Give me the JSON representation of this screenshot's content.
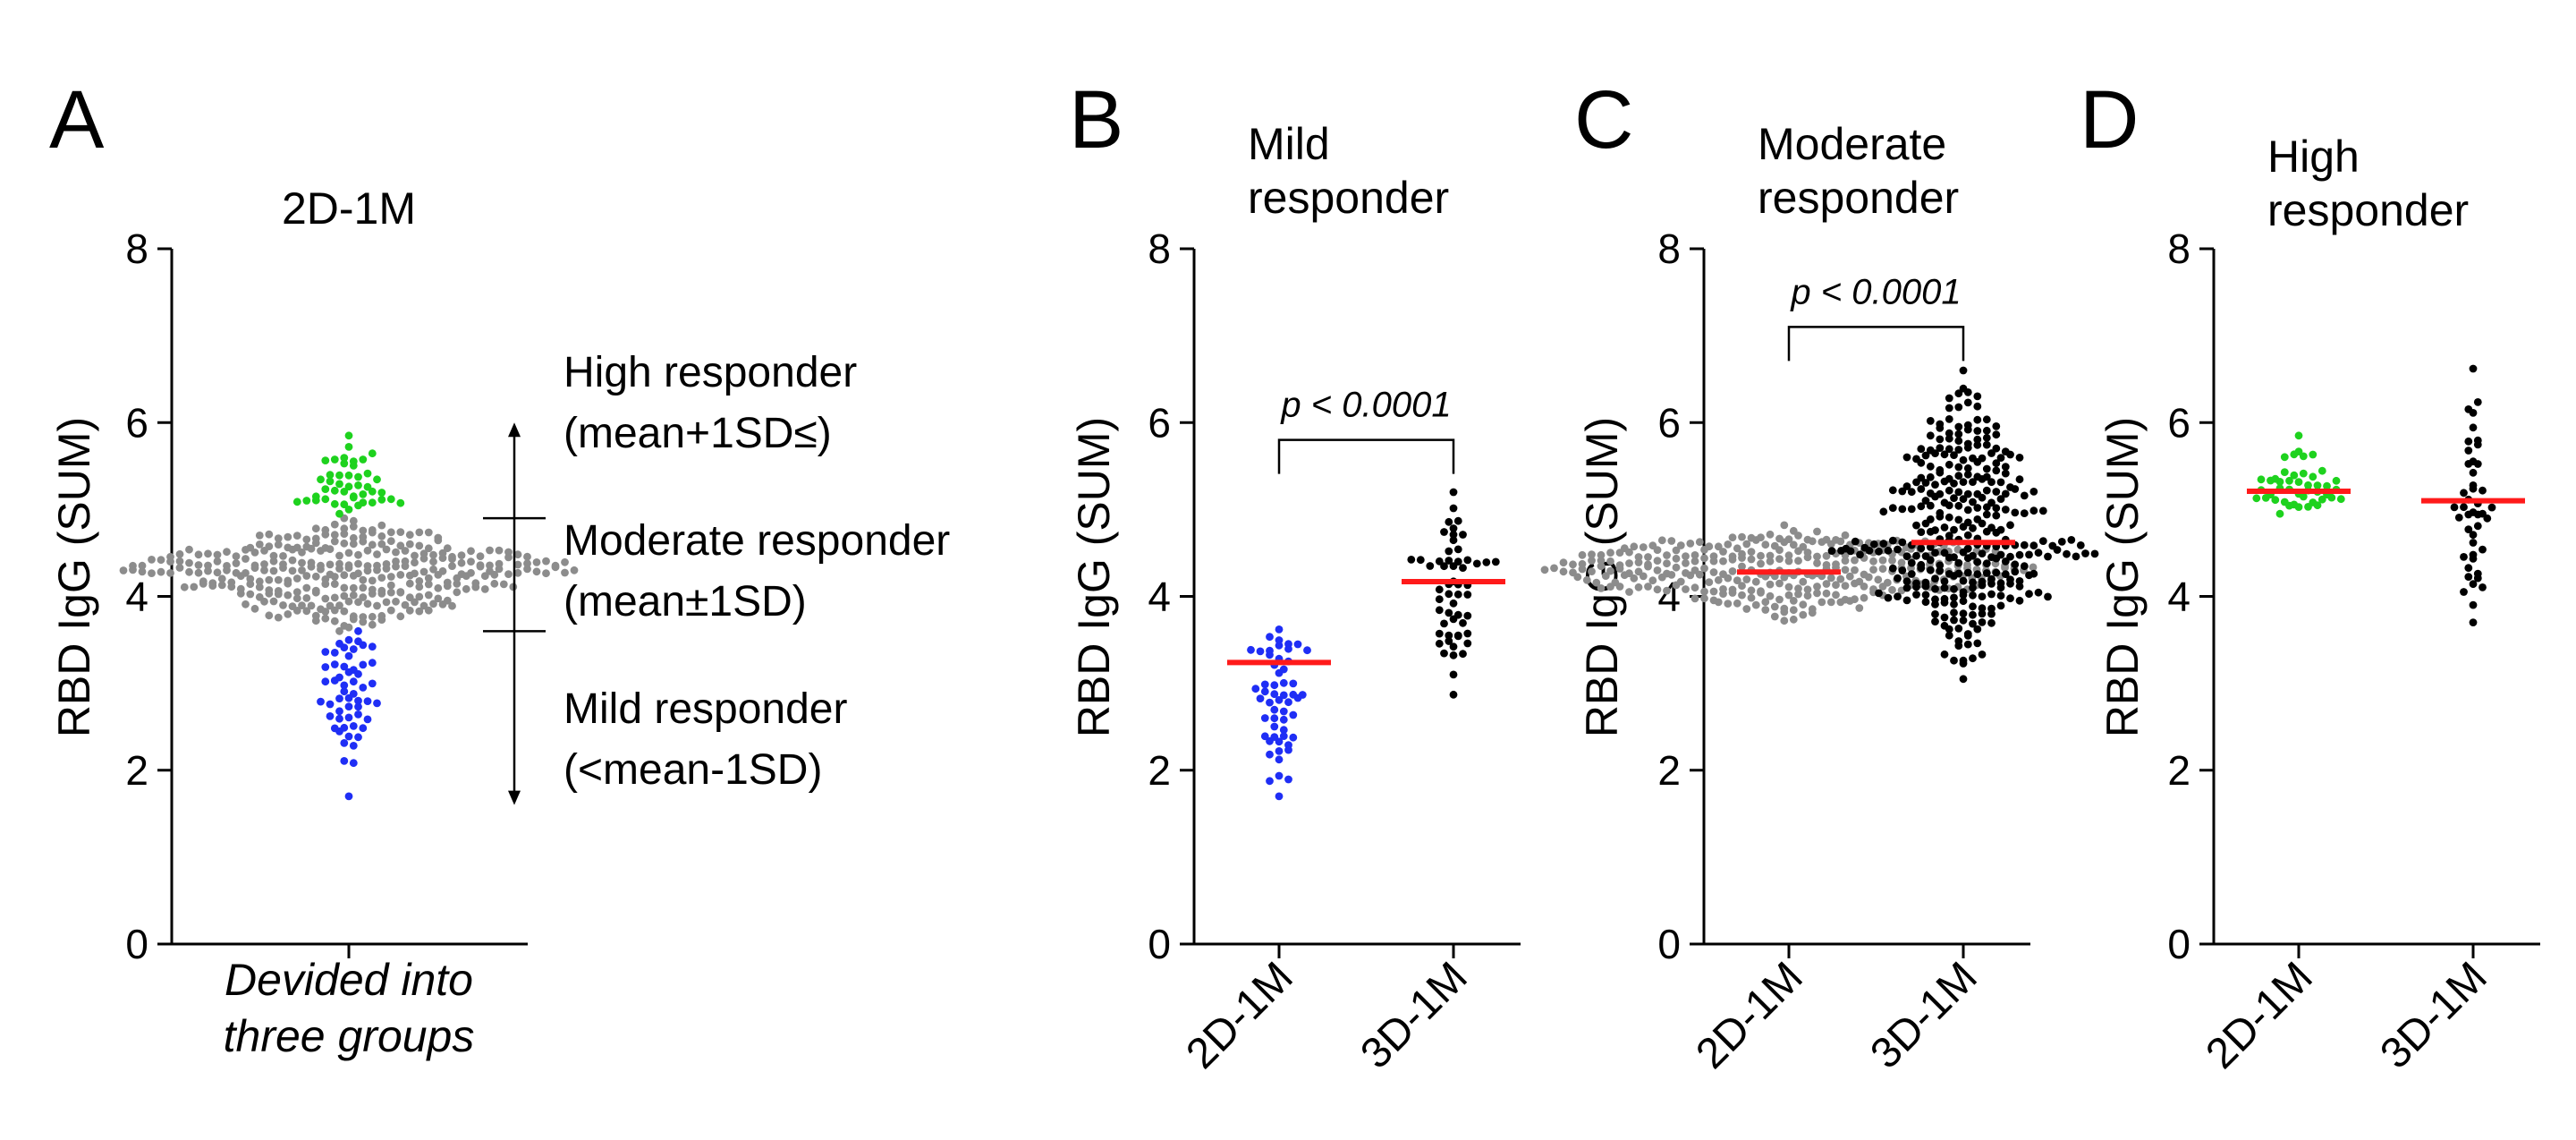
{
  "figure": {
    "background": "#ffffff",
    "colors": {
      "mild": "#1f2ef5",
      "moderate": "#8c8c8c",
      "high": "#1ed21e",
      "third_dose": "#000000",
      "mean_line": "#ff1a1a"
    }
  },
  "chart_data": [
    {
      "panel": "A",
      "type": "scatter",
      "title": "2D-1M",
      "ylabel": "RBD IgG (SUM)",
      "ylim": [
        0,
        8
      ],
      "yticks": [
        0,
        2,
        4,
        6,
        8
      ],
      "xlabel_lines": [
        "Devided into",
        "three groups"
      ],
      "thresholds": {
        "lower": 3.6,
        "upper": 4.9
      },
      "groups": [
        {
          "name": "High responder",
          "color_key": "high",
          "count": 45,
          "min": 4.95,
          "max": 5.85,
          "center": 5.1
        },
        {
          "name": "Moderate responder",
          "color_key": "moderate",
          "count": 330,
          "min": 3.6,
          "max": 4.9,
          "center": 4.3
        },
        {
          "name": "Mild responder",
          "color_key": "mild",
          "count": 55,
          "min": 1.7,
          "max": 3.6,
          "center": 3.45
        }
      ],
      "annotations": [
        {
          "line1": "High responder",
          "line2": "(mean+1SD≤)"
        },
        {
          "line1": "Moderate responder",
          "line2": "(mean±1SD)"
        },
        {
          "line1": "Mild responder",
          "line2": "(<mean-1SD)"
        }
      ]
    },
    {
      "panel": "B",
      "type": "scatter",
      "title_lines": [
        "Mild",
        "responder"
      ],
      "ylabel": "RBD IgG (SUM)",
      "ylim": [
        0,
        8
      ],
      "yticks": [
        0,
        2,
        4,
        6,
        8
      ],
      "categories": [
        "2D-1M",
        "3D-1M"
      ],
      "series": [
        {
          "name": "2D-1M",
          "color_key": "mild",
          "count": 55,
          "min": 1.7,
          "max": 3.62,
          "center": 3.45,
          "mean": 3.24
        },
        {
          "name": "3D-1M",
          "color_key": "third_dose",
          "count": 55,
          "min": 2.87,
          "max": 5.2,
          "center": 4.2,
          "mean": 4.17
        }
      ],
      "significance": {
        "text": "p < 0.0001",
        "y": 5.8
      }
    },
    {
      "panel": "C",
      "type": "scatter",
      "title_lines": [
        "Moderate",
        "responder"
      ],
      "ylabel": "RBD IgG (SUM)",
      "ylim": [
        0,
        8
      ],
      "yticks": [
        0,
        2,
        4,
        6,
        8
      ],
      "categories": [
        "2D-1M",
        "3D-1M"
      ],
      "series": [
        {
          "name": "2D-1M",
          "color_key": "moderate",
          "count": 330,
          "min": 3.72,
          "max": 4.82,
          "center": 4.3,
          "mean": 4.28
        },
        {
          "name": "3D-1M",
          "color_key": "third_dose",
          "count": 330,
          "min": 3.05,
          "max": 6.6,
          "center": 4.6,
          "mean": 4.62
        }
      ],
      "significance": {
        "text": "p < 0.0001",
        "y": 7.1
      }
    },
    {
      "panel": "D",
      "type": "scatter",
      "title_lines": [
        "High",
        "responder"
      ],
      "ylabel": "RBD IgG (SUM)",
      "ylim": [
        0,
        8
      ],
      "yticks": [
        0,
        2,
        4,
        6,
        8
      ],
      "categories": [
        "2D-1M",
        "3D-1M"
      ],
      "series": [
        {
          "name": "2D-1M",
          "color_key": "high",
          "count": 45,
          "min": 4.95,
          "max": 5.85,
          "center": 5.1,
          "mean": 5.21
        },
        {
          "name": "3D-1M",
          "color_key": "third_dose",
          "count": 45,
          "min": 3.7,
          "max": 6.62,
          "center": 5.1,
          "mean": 5.1
        }
      ]
    }
  ]
}
